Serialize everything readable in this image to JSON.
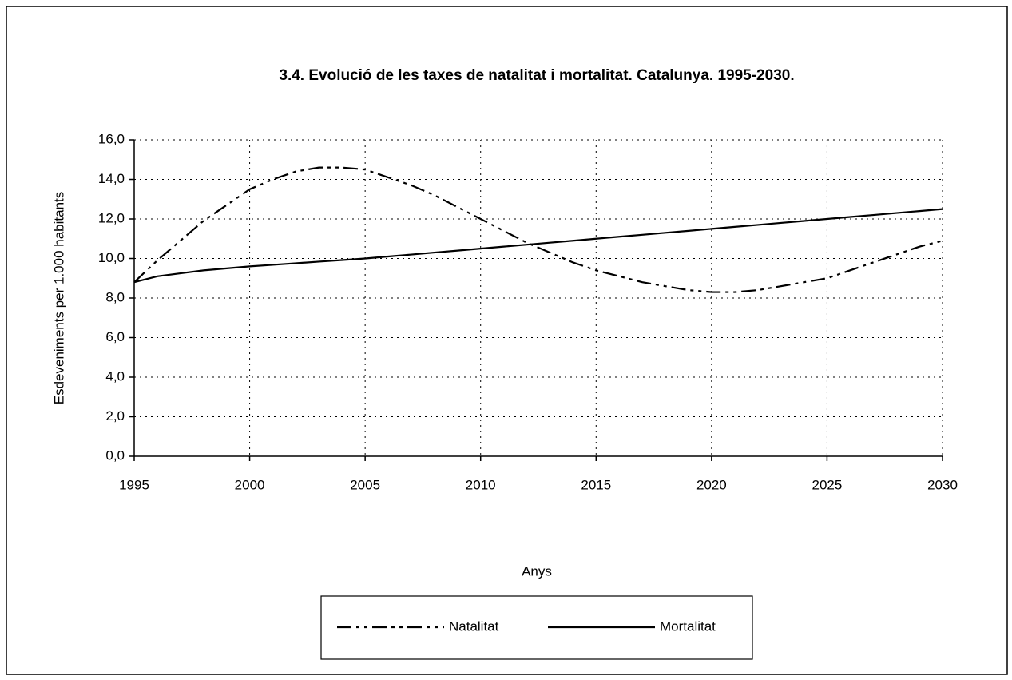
{
  "chart_data": {
    "type": "line",
    "title": "3.4. Evolució de les taxes de natalitat i mortalitat. Catalunya. 1995-2030.",
    "x_label": "Anys",
    "y_label": "Esdeveniments per 1.000 habitants",
    "x": [
      1995,
      1996,
      1997,
      1998,
      1999,
      2000,
      2001,
      2002,
      2003,
      2004,
      2005,
      2006,
      2007,
      2008,
      2009,
      2010,
      2011,
      2012,
      2013,
      2014,
      2015,
      2016,
      2017,
      2018,
      2019,
      2020,
      2021,
      2022,
      2023,
      2024,
      2025,
      2026,
      2027,
      2028,
      2029,
      2030
    ],
    "series": [
      {
        "name": "Natalitat",
        "color": "#000000",
        "dash": "dash-dot-dot",
        "values": [
          8.8,
          9.9,
          10.9,
          11.9,
          12.7,
          13.5,
          14.0,
          14.4,
          14.6,
          14.6,
          14.5,
          14.1,
          13.7,
          13.2,
          12.6,
          12.0,
          11.4,
          10.8,
          10.3,
          9.8,
          9.4,
          9.1,
          8.8,
          8.6,
          8.4,
          8.3,
          8.3,
          8.4,
          8.6,
          8.8,
          9.0,
          9.4,
          9.8,
          10.2,
          10.6,
          10.9
        ]
      },
      {
        "name": "Mortalitat",
        "color": "#000000",
        "dash": "solid",
        "values": [
          8.8,
          9.1,
          9.25,
          9.4,
          9.5,
          9.6,
          9.68,
          9.76,
          9.84,
          9.92,
          10.0,
          10.1,
          10.2,
          10.3,
          10.4,
          10.5,
          10.6,
          10.7,
          10.8,
          10.9,
          11.0,
          11.1,
          11.2,
          11.3,
          11.4,
          11.5,
          11.6,
          11.7,
          11.8,
          11.9,
          12.0,
          12.1,
          12.2,
          12.3,
          12.4,
          12.5
        ]
      }
    ],
    "xlim": [
      1995,
      2030
    ],
    "xticks": [
      1995,
      2000,
      2005,
      2010,
      2015,
      2020,
      2025,
      2030
    ],
    "ylim": [
      0,
      16
    ],
    "yticks": [
      {
        "value": 0,
        "label": "0,0"
      },
      {
        "value": 2,
        "label": "2,0"
      },
      {
        "value": 4,
        "label": "4,0"
      },
      {
        "value": 6,
        "label": "6,0"
      },
      {
        "value": 8,
        "label": "8,0"
      },
      {
        "value": 10,
        "label": "10,0"
      },
      {
        "value": 12,
        "label": "12,0"
      },
      {
        "value": 14,
        "label": "14,0"
      },
      {
        "value": 16,
        "label": "16,0"
      }
    ],
    "grid": true,
    "legend": "bottom"
  }
}
